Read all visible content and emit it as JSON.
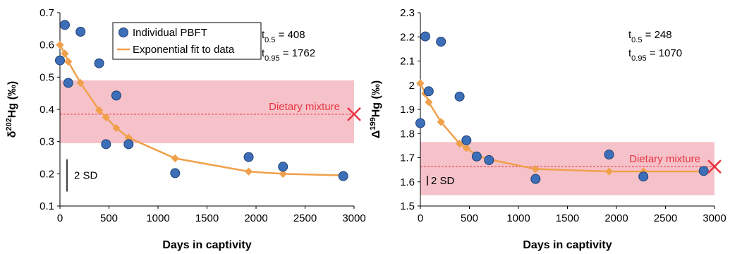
{
  "chart_data": [
    {
      "type": "scatter",
      "xlabel": "Days in captivity",
      "ylabel_parts": {
        "prefix": "δ",
        "sup": "202",
        "main": "Hg (‰)"
      },
      "xlim": [
        0,
        3000
      ],
      "ylim": [
        0.1,
        0.7
      ],
      "xticks": [
        0,
        500,
        1000,
        1500,
        2000,
        2500,
        3000
      ],
      "yticks": [
        "0.1",
        "0.2",
        "0.3",
        "0.4",
        "0.5",
        "0.6",
        "0.7"
      ],
      "series": [
        {
          "name": "Individual PBFT",
          "kind": "points",
          "x": [
            0,
            50,
            85,
            210,
            400,
            470,
            575,
            700,
            1175,
            1925,
            2275,
            2890
          ],
          "y": [
            0.552,
            0.662,
            0.482,
            0.641,
            0.543,
            0.292,
            0.443,
            0.292,
            0.202,
            0.252,
            0.222,
            0.193
          ]
        },
        {
          "name": "Exponential fit to data",
          "kind": "fit",
          "x": [
            0,
            50,
            85,
            210,
            400,
            470,
            575,
            700,
            1175,
            1925,
            2275,
            2890
          ],
          "y": [
            0.6,
            0.573,
            0.548,
            0.482,
            0.397,
            0.375,
            0.342,
            0.312,
            0.248,
            0.207,
            0.2,
            0.195
          ]
        }
      ],
      "band": {
        "y": [
          0.295,
          0.49
        ],
        "color": "#f5b7c1",
        "label": "Dietary mixture",
        "value": 0.385,
        "x_marker": 3000
      },
      "annotations": [
        {
          "base": "t",
          "sub": "0.5",
          "rest": " = 408"
        },
        {
          "base": "t",
          "sub": "0.95",
          "rest": " = 1762"
        }
      ],
      "sd_label": "2 SD",
      "sd_range": [
        0.145,
        0.245
      ],
      "legend_position": "top-left"
    },
    {
      "type": "scatter",
      "xlabel": "Days in captivity",
      "ylabel_parts": {
        "prefix": "Δ",
        "sup": "199",
        "main": "Hg (‰)"
      },
      "xlim": [
        0,
        3000
      ],
      "ylim": [
        1.5,
        2.3
      ],
      "xticks": [
        0,
        500,
        1000,
        1500,
        2000,
        2500,
        3000
      ],
      "yticks": [
        "1.5",
        "1.6",
        "1.7",
        "1.8",
        "1.9",
        "2",
        "2.1",
        "2.2",
        "2.3"
      ],
      "series": [
        {
          "name": "Individual PBFT",
          "kind": "points",
          "x": [
            0,
            50,
            85,
            210,
            400,
            470,
            575,
            700,
            1175,
            1925,
            2275,
            2890
          ],
          "y": [
            1.843,
            2.202,
            1.975,
            2.18,
            1.953,
            1.772,
            1.705,
            1.69,
            1.612,
            1.713,
            1.622,
            1.645
          ]
        },
        {
          "name": "Exponential fit to data",
          "kind": "fit",
          "x": [
            0,
            50,
            85,
            210,
            400,
            470,
            575,
            700,
            1175,
            1925,
            2275,
            2890
          ],
          "y": [
            2.008,
            1.965,
            1.93,
            1.848,
            1.758,
            1.74,
            1.71,
            1.693,
            1.653,
            1.643,
            1.643,
            1.643
          ]
        }
      ],
      "band": {
        "y": [
          1.545,
          1.765
        ],
        "color": "#f5b7c1",
        "label": "Dietary mixture",
        "value": 1.663,
        "x_marker": 3000
      },
      "annotations": [
        {
          "base": "t",
          "sub": "0.5",
          "rest": " = 248"
        },
        {
          "base": "t",
          "sub": "0.95",
          "rest": " = 1070"
        }
      ],
      "sd_label": "2 SD",
      "sd_range": [
        1.585,
        1.625
      ]
    }
  ],
  "colors": {
    "points": "#3c6fb8",
    "point_edge": "#1f3f73",
    "fit": "#f0a04b",
    "band": "#f5b7c1",
    "dietary": "#e8343f"
  }
}
